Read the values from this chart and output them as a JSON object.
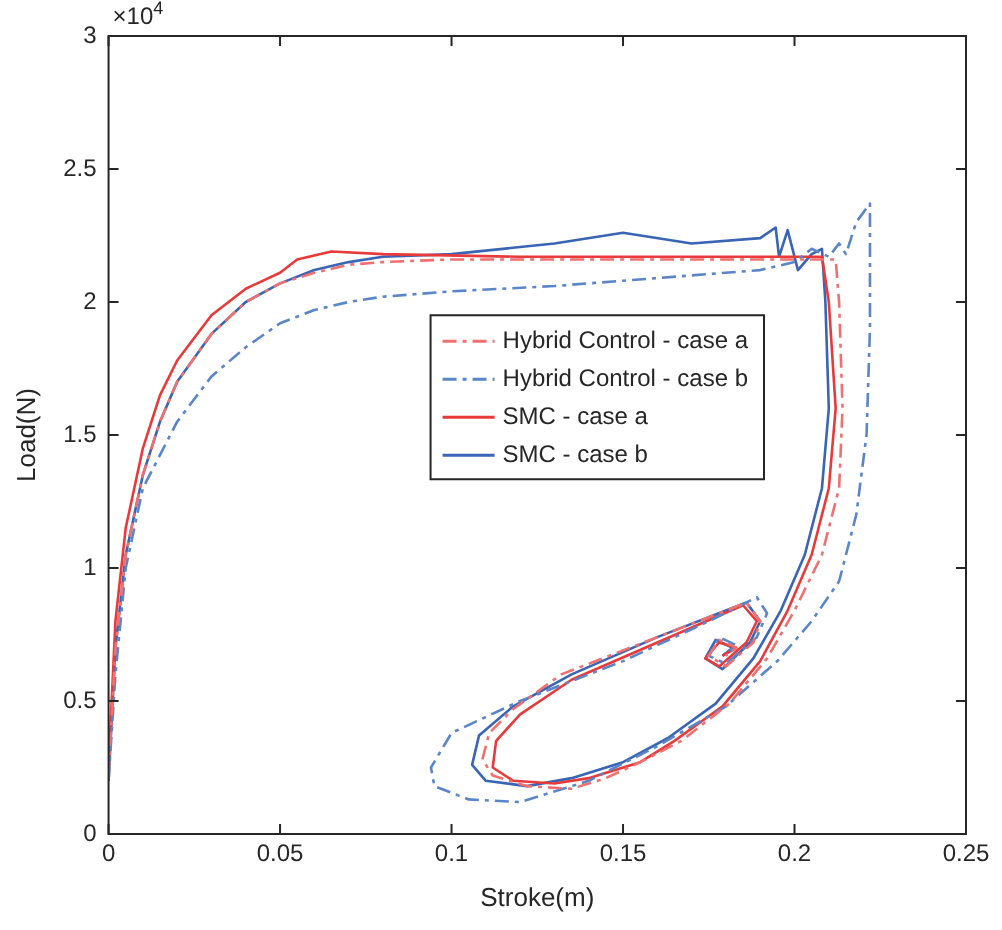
{
  "chart_data": {
    "type": "line",
    "xlabel": "Stroke(m)",
    "ylabel": "Load(N)",
    "annotations": [
      "×10$^{4}$"
    ],
    "xlim": [
      0,
      0.25
    ],
    "xticks": [
      0,
      0.05,
      0.1,
      0.15,
      0.2,
      0.25
    ],
    "ylim": [
      0,
      3
    ],
    "yticks": [
      0,
      0.5,
      1,
      1.5,
      2,
      2.5,
      3
    ],
    "grid": false,
    "legend": "center",
    "marker": "none",
    "series": [
      {
        "name": "Hybrid Control - case a",
        "color": "#f07070",
        "line_style": "dashdot",
        "x": [
          0,
          0.002,
          0.005,
          0.01,
          0.015,
          0.02,
          0.03,
          0.04,
          0.05,
          0.06,
          0.07,
          0.08,
          0.1,
          0.13,
          0.16,
          0.19,
          0.205,
          0.212,
          0.213,
          0.214,
          0.213,
          0.208,
          0.2,
          0.192,
          0.181,
          0.167,
          0.155,
          0.145,
          0.135,
          0.122,
          0.112,
          0.109,
          0.111,
          0.118,
          0.132,
          0.16,
          0.186,
          0.19,
          0.188,
          0.18,
          0.175,
          0.178,
          0.183,
          0.18
        ],
        "values": [
          0.22,
          0.7,
          1.05,
          1.35,
          1.55,
          1.7,
          1.88,
          2.0,
          2.07,
          2.11,
          2.14,
          2.15,
          2.16,
          2.16,
          2.16,
          2.16,
          2.16,
          2.16,
          2.0,
          1.6,
          1.3,
          1.05,
          0.84,
          0.66,
          0.49,
          0.35,
          0.27,
          0.21,
          0.17,
          0.18,
          0.22,
          0.28,
          0.38,
          0.47,
          0.6,
          0.74,
          0.87,
          0.8,
          0.72,
          0.63,
          0.67,
          0.73,
          0.7,
          0.67
        ]
      },
      {
        "name": "Hybrid Control - case b",
        "color": "#5a85c8",
        "line_style": "dashdot",
        "x": [
          0,
          0.002,
          0.005,
          0.01,
          0.02,
          0.03,
          0.04,
          0.05,
          0.06,
          0.07,
          0.08,
          0.1,
          0.13,
          0.15,
          0.17,
          0.19,
          0.2,
          0.205,
          0.21,
          0.213,
          0.215,
          0.218,
          0.222,
          0.222,
          0.221,
          0.218,
          0.213,
          0.205,
          0.195,
          0.18,
          0.16,
          0.14,
          0.12,
          0.105,
          0.095,
          0.094,
          0.1,
          0.12,
          0.15,
          0.175,
          0.189,
          0.192,
          0.189,
          0.18,
          0.175,
          0.178,
          0.183,
          0.18
        ],
        "values": [
          0.2,
          0.6,
          1.0,
          1.3,
          1.55,
          1.72,
          1.83,
          1.92,
          1.97,
          2.0,
          2.02,
          2.04,
          2.06,
          2.08,
          2.1,
          2.12,
          2.15,
          2.2,
          2.17,
          2.22,
          2.18,
          2.3,
          2.37,
          1.9,
          1.5,
          1.2,
          0.95,
          0.8,
          0.65,
          0.48,
          0.33,
          0.2,
          0.12,
          0.13,
          0.18,
          0.25,
          0.38,
          0.5,
          0.65,
          0.8,
          0.89,
          0.83,
          0.74,
          0.64,
          0.67,
          0.74,
          0.71,
          0.67
        ]
      },
      {
        "name": "SMC - case a",
        "color": "#e83a3a",
        "line_style": "solid",
        "x": [
          0,
          0.002,
          0.005,
          0.01,
          0.015,
          0.02,
          0.03,
          0.04,
          0.05,
          0.055,
          0.065,
          0.08,
          0.12,
          0.16,
          0.2,
          0.208,
          0.21,
          0.212,
          0.21,
          0.205,
          0.198,
          0.19,
          0.179,
          0.165,
          0.155,
          0.14,
          0.13,
          0.118,
          0.112,
          0.113,
          0.12,
          0.135,
          0.16,
          0.185,
          0.189,
          0.186,
          0.178,
          0.174,
          0.178,
          0.183,
          0.179
        ],
        "values": [
          0.25,
          0.8,
          1.15,
          1.45,
          1.65,
          1.78,
          1.95,
          2.05,
          2.11,
          2.16,
          2.19,
          2.18,
          2.17,
          2.17,
          2.17,
          2.17,
          2.0,
          1.6,
          1.3,
          1.05,
          0.84,
          0.65,
          0.48,
          0.35,
          0.27,
          0.21,
          0.19,
          0.2,
          0.25,
          0.35,
          0.45,
          0.58,
          0.72,
          0.86,
          0.8,
          0.72,
          0.63,
          0.66,
          0.72,
          0.7,
          0.67
        ]
      },
      {
        "name": "SMC - case b",
        "color": "#3a64b4",
        "line_style": "solid",
        "x": [
          0,
          0.002,
          0.005,
          0.01,
          0.015,
          0.02,
          0.03,
          0.04,
          0.05,
          0.06,
          0.07,
          0.08,
          0.1,
          0.13,
          0.15,
          0.17,
          0.19,
          0.1945,
          0.1955,
          0.198,
          0.201,
          0.205,
          0.208,
          0.209,
          0.21,
          0.208,
          0.203,
          0.196,
          0.188,
          0.177,
          0.163,
          0.15,
          0.135,
          0.122,
          0.11,
          0.106,
          0.108,
          0.118,
          0.135,
          0.16,
          0.186,
          0.19,
          0.187,
          0.179,
          0.174,
          0.177,
          0.182,
          0.179
        ],
        "values": [
          0.2,
          0.7,
          1.05,
          1.35,
          1.55,
          1.7,
          1.88,
          2.0,
          2.07,
          2.12,
          2.15,
          2.17,
          2.18,
          2.22,
          2.26,
          2.22,
          2.24,
          2.28,
          2.17,
          2.27,
          2.12,
          2.18,
          2.2,
          2.0,
          1.6,
          1.3,
          1.05,
          0.84,
          0.66,
          0.49,
          0.36,
          0.27,
          0.21,
          0.18,
          0.2,
          0.26,
          0.37,
          0.48,
          0.6,
          0.74,
          0.87,
          0.8,
          0.72,
          0.62,
          0.66,
          0.73,
          0.7,
          0.67
        ]
      }
    ]
  }
}
